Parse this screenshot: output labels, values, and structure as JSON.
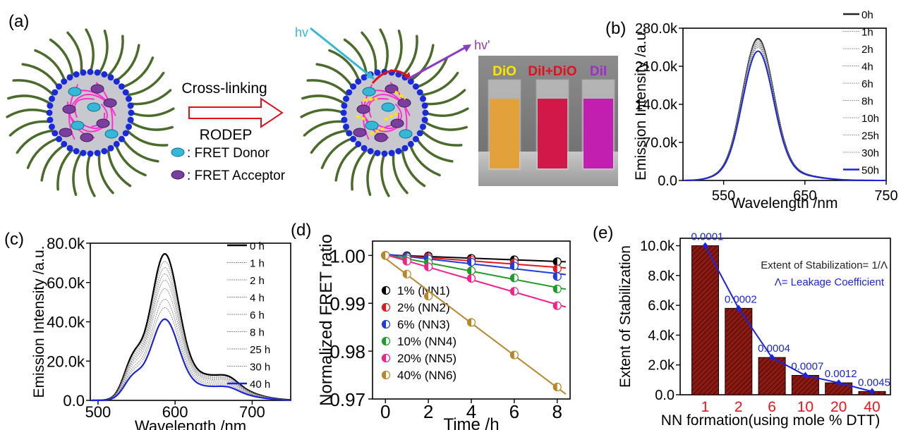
{
  "panel_a": {
    "label": "(a)",
    "arrow_top": "Cross-linking",
    "arrow_bottom": "RODEP",
    "hv_in": "hv",
    "hv_out": "hv'",
    "legend": [
      {
        "text": ": FRET Donor",
        "color": "#35b8d8"
      },
      {
        "text": ": FRET Acceptor",
        "color": "#7a3f9e"
      }
    ],
    "vials": [
      {
        "label": "DiO",
        "label_color": "#ffe600",
        "fill": "#e3a13c"
      },
      {
        "label": "DiI+DiO",
        "label_color": "#e3101c",
        "fill": "#d21848"
      },
      {
        "label": "DiI",
        "label_color": "#9b2fc7",
        "fill": "#c21fb0"
      }
    ]
  },
  "chart_data": [
    {
      "panel": "(b)",
      "type": "line",
      "xlabel": "Wavelength /nm",
      "ylabel": "Emission Intensity /a.u.",
      "xlim": [
        500,
        750
      ],
      "ylim": [
        0,
        280000
      ],
      "xticks": [
        "550",
        "650",
        "750"
      ],
      "yticks": [
        "0.0",
        "70.0k",
        "140.0k",
        "210.0k",
        "280.0k"
      ],
      "peak_nm": 592,
      "series": [
        {
          "name": "0h",
          "peak": 250000,
          "color": "#222222"
        },
        {
          "name": "1h",
          "peak": 248000,
          "color": "#9a9a9a"
        },
        {
          "name": "2h",
          "peak": 246000,
          "color": "#9a9a9a"
        },
        {
          "name": "4h",
          "peak": 244000,
          "color": "#9a9a9a"
        },
        {
          "name": "6h",
          "peak": 242000,
          "color": "#9a9a9a"
        },
        {
          "name": "8h",
          "peak": 240000,
          "color": "#9a9a9a"
        },
        {
          "name": "10h",
          "peak": 238000,
          "color": "#9a9a9a"
        },
        {
          "name": "25h",
          "peak": 236000,
          "color": "#9a9a9a"
        },
        {
          "name": "30h",
          "peak": 234000,
          "color": "#9a9a9a"
        },
        {
          "name": "50h",
          "peak": 228000,
          "color": "#1a24e0"
        }
      ]
    },
    {
      "panel": "(c)",
      "type": "line",
      "xlabel": "Wavelength /nm",
      "ylabel": "Emission Intensity /a.u.",
      "xlim": [
        490,
        750
      ],
      "ylim": [
        0,
        80000
      ],
      "xticks": [
        "500",
        "600",
        "700"
      ],
      "yticks": [
        "0.0",
        "20.0k",
        "40.0k",
        "60.0k",
        "80.0k"
      ],
      "peak_nm": 586,
      "series": [
        {
          "name": "0 h",
          "peak": 69500,
          "color": "#000000"
        },
        {
          "name": "1 h",
          "peak": 66000,
          "color": "#8a8a8a"
        },
        {
          "name": "2 h",
          "peak": 63000,
          "color": "#8a8a8a"
        },
        {
          "name": "4 h",
          "peak": 60000,
          "color": "#8a8a8a"
        },
        {
          "name": "6 h",
          "peak": 57000,
          "color": "#8a8a8a"
        },
        {
          "name": "8 h",
          "peak": 53000,
          "color": "#8a8a8a"
        },
        {
          "name": "25 h",
          "peak": 48000,
          "color": "#8a8a8a"
        },
        {
          "name": "30 h",
          "peak": 44000,
          "color": "#8a8a8a"
        },
        {
          "name": "40 h",
          "peak": 38500,
          "color": "#1a24e0"
        }
      ]
    },
    {
      "panel": "(d)",
      "type": "scatter",
      "xlabel": "Time /h",
      "ylabel": "Normalized FRET ratio",
      "xlim": [
        -0.6,
        8.6
      ],
      "ylim": [
        0.97,
        1.003
      ],
      "xticks": [
        0,
        2,
        4,
        6,
        8
      ],
      "yticks": [
        "0.97",
        "0.98",
        "0.99",
        "1.00"
      ],
      "x": [
        0,
        1,
        2,
        4,
        6,
        8
      ],
      "series": [
        {
          "name": "1% (NN1)",
          "color": "#000000",
          "values": [
            1.0,
            0.99995,
            0.9999,
            0.9994,
            0.9991,
            0.9987
          ]
        },
        {
          "name": "2% (NN2)",
          "color": "#e8161b",
          "values": [
            1.0,
            0.9998,
            0.99965,
            0.99905,
            0.99845,
            0.9972
          ]
        },
        {
          "name": "6% (NN3)",
          "color": "#1d3ce0",
          "values": [
            1.0,
            0.9997,
            0.9993,
            0.9986,
            0.9978,
            0.9956
          ]
        },
        {
          "name": "10% (NN4)",
          "color": "#1f9b28",
          "values": [
            1.0,
            0.9993,
            0.9985,
            0.9968,
            0.9953,
            0.993
          ]
        },
        {
          "name": "20% (NN5)",
          "color": "#f0228c",
          "values": [
            1.0,
            0.9988,
            0.9976,
            0.9952,
            0.9925,
            0.9895
          ]
        },
        {
          "name": "40% (NN6)",
          "color": "#b8872c",
          "values": [
            1.0,
            0.9961,
            0.9915,
            0.986,
            0.9792,
            0.9725
          ]
        }
      ]
    },
    {
      "panel": "(e)",
      "type": "bar",
      "xlabel": "NN formation(using mole % DTT)",
      "ylabel": "Extent of Stabilization",
      "ylim": [
        0,
        10500
      ],
      "yticks": [
        "0.0",
        "2.0k",
        "4.0k",
        "6.0k",
        "8.0k",
        "10.0k"
      ],
      "categories": [
        "1",
        "2",
        "6",
        "10",
        "20",
        "40"
      ],
      "values": [
        10000,
        5800,
        2500,
        1300,
        800,
        220
      ],
      "line_labels": [
        "0.0001",
        "0.0002",
        "0.0004",
        "0.0007",
        "0.0012",
        "0.0045"
      ],
      "annotation_1": "Extent of Stabilization= 1/Λ",
      "annotation_2": "Λ= Leakage Coefficient",
      "bar_color": "#8b1a12",
      "line_color": "#1a24e0",
      "category_color": "#e8161b"
    }
  ]
}
